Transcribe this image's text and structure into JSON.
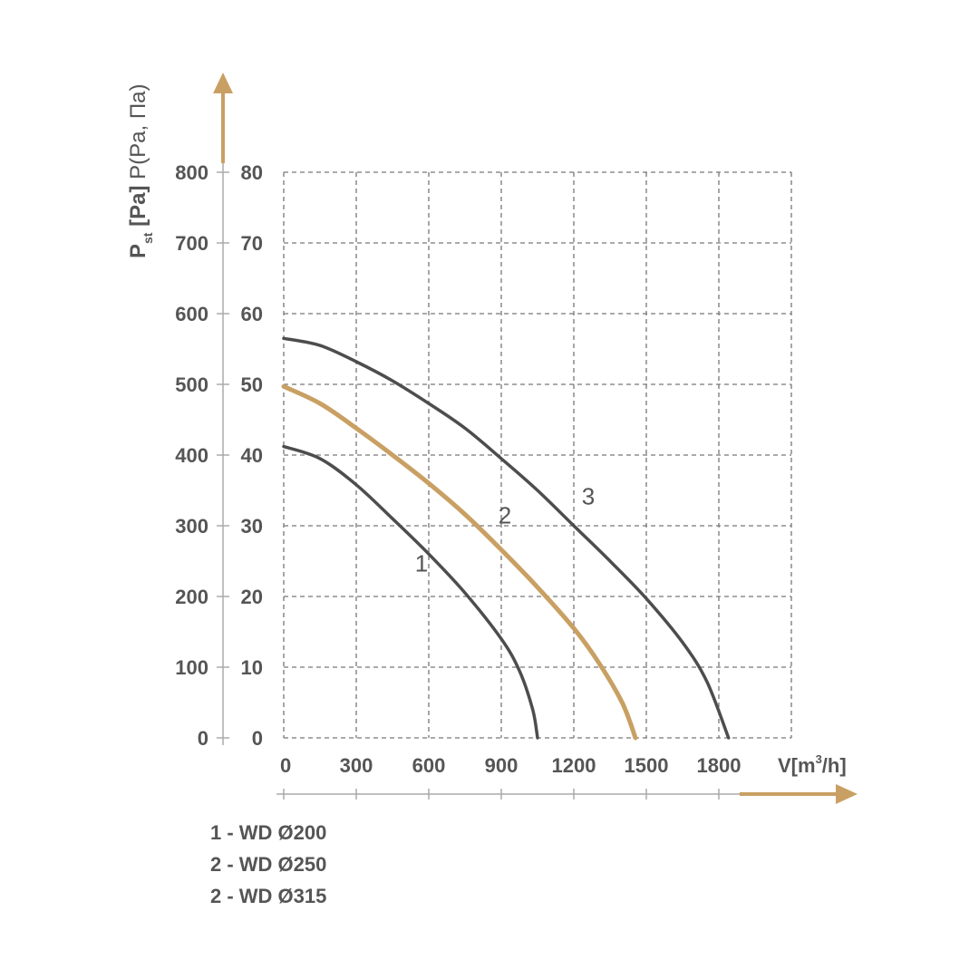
{
  "chart_data": {
    "type": "line",
    "x": [
      0,
      300,
      600,
      900,
      1200,
      1500,
      1800
    ],
    "xlim": [
      0,
      2100
    ],
    "ylim": [
      0,
      80
    ],
    "x_ticks": [
      "0",
      "300",
      "600",
      "900",
      "1200",
      "1500",
      "1800"
    ],
    "y_ticks_outer": [
      "0",
      "100",
      "200",
      "300",
      "400",
      "500",
      "600",
      "700",
      "800"
    ],
    "y_ticks_inner": [
      "0",
      "10",
      "20",
      "30",
      "40",
      "50",
      "60",
      "70",
      "80"
    ],
    "ylabel_main": "P",
    "ylabel_sub": "st",
    "ylabel_bracket": " [Pa]",
    "ylabel_alt": " P(Pa, Па)",
    "xlabel_main": "V[m",
    "xlabel_sup": "3",
    "xlabel_end": "/h]",
    "grid": true,
    "series": [
      {
        "name": "1",
        "color": "#4d4d4f",
        "points": [
          [
            0,
            41.2
          ],
          [
            150,
            39.5
          ],
          [
            300,
            35.8
          ],
          [
            450,
            31.0
          ],
          [
            600,
            26.0
          ],
          [
            750,
            20.5
          ],
          [
            900,
            14.0
          ],
          [
            975,
            9.5
          ],
          [
            1030,
            4.0
          ],
          [
            1050,
            0
          ]
        ]
      },
      {
        "name": "2",
        "color": "#c9a063",
        "points": [
          [
            0,
            49.7
          ],
          [
            150,
            47.3
          ],
          [
            300,
            43.8
          ],
          [
            450,
            40.0
          ],
          [
            600,
            36.0
          ],
          [
            750,
            31.6
          ],
          [
            900,
            26.6
          ],
          [
            1050,
            21.3
          ],
          [
            1200,
            15.5
          ],
          [
            1300,
            10.8
          ],
          [
            1400,
            5.0
          ],
          [
            1455,
            0
          ]
        ]
      },
      {
        "name": "3",
        "color": "#4d4d4f",
        "points": [
          [
            0,
            56.5
          ],
          [
            150,
            55.5
          ],
          [
            300,
            53.2
          ],
          [
            450,
            50.5
          ],
          [
            600,
            47.3
          ],
          [
            750,
            43.8
          ],
          [
            900,
            39.5
          ],
          [
            1050,
            35.0
          ],
          [
            1200,
            30.0
          ],
          [
            1350,
            25.0
          ],
          [
            1500,
            19.7
          ],
          [
            1650,
            13.5
          ],
          [
            1750,
            8.0
          ],
          [
            1840,
            0
          ]
        ]
      }
    ],
    "curve_labels": [
      {
        "text": "1",
        "x": 570,
        "y": 23.5
      },
      {
        "text": "2",
        "x": 915,
        "y": 30.3
      },
      {
        "text": "3",
        "x": 1260,
        "y": 33.0
      }
    ],
    "legend": [
      "1 - WD Ø200",
      "2 - WD Ø250",
      "2 - WD Ø315"
    ],
    "arrow_color": "#c9a063"
  }
}
